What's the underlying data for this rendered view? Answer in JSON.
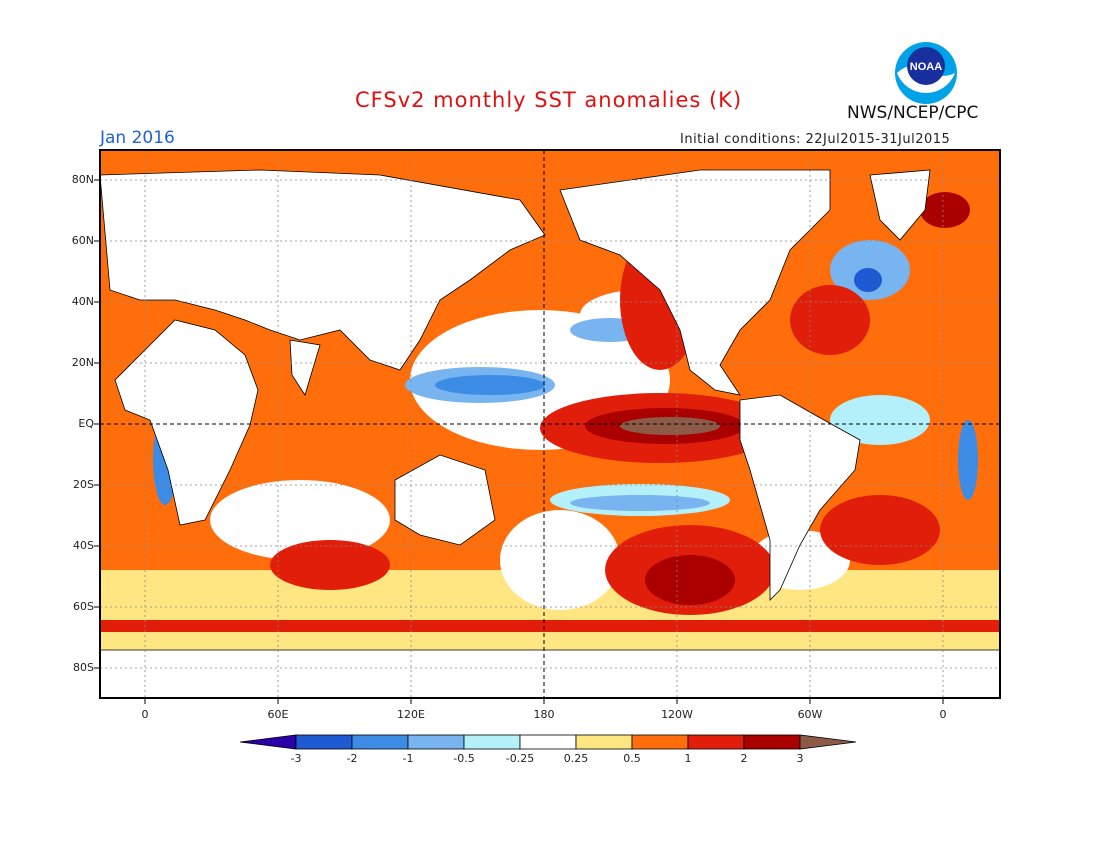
{
  "header": {
    "title": "CFSv2 monthly SST anomalies (K)",
    "org": "NWS/NCEP/CPC",
    "logo_text": "NOAA",
    "month": "Jan 2016",
    "initial_conditions": "Initial conditions: 22Jul2015-31Jul2015"
  },
  "axes": {
    "lat_labels": [
      "80N",
      "60N",
      "40N",
      "20N",
      "EQ",
      "20S",
      "40S",
      "60S",
      "80S"
    ],
    "lon_labels": [
      "0",
      "60E",
      "120E",
      "180",
      "120W",
      "60W",
      "0"
    ]
  },
  "colorbar": {
    "labels": [
      "-3",
      "-2",
      "-1",
      "-0.5",
      "-0.25",
      "0.25",
      "0.5",
      "1",
      "2",
      "3"
    ],
    "colors": [
      "#2a00a8",
      "#1e5ad2",
      "#3c8ce6",
      "#78b4f0",
      "#b4f0fa",
      "#ffffff",
      "#ffe682",
      "#ff6e0a",
      "#e11e0a",
      "#aa0000",
      "#8c5a46"
    ]
  }
}
